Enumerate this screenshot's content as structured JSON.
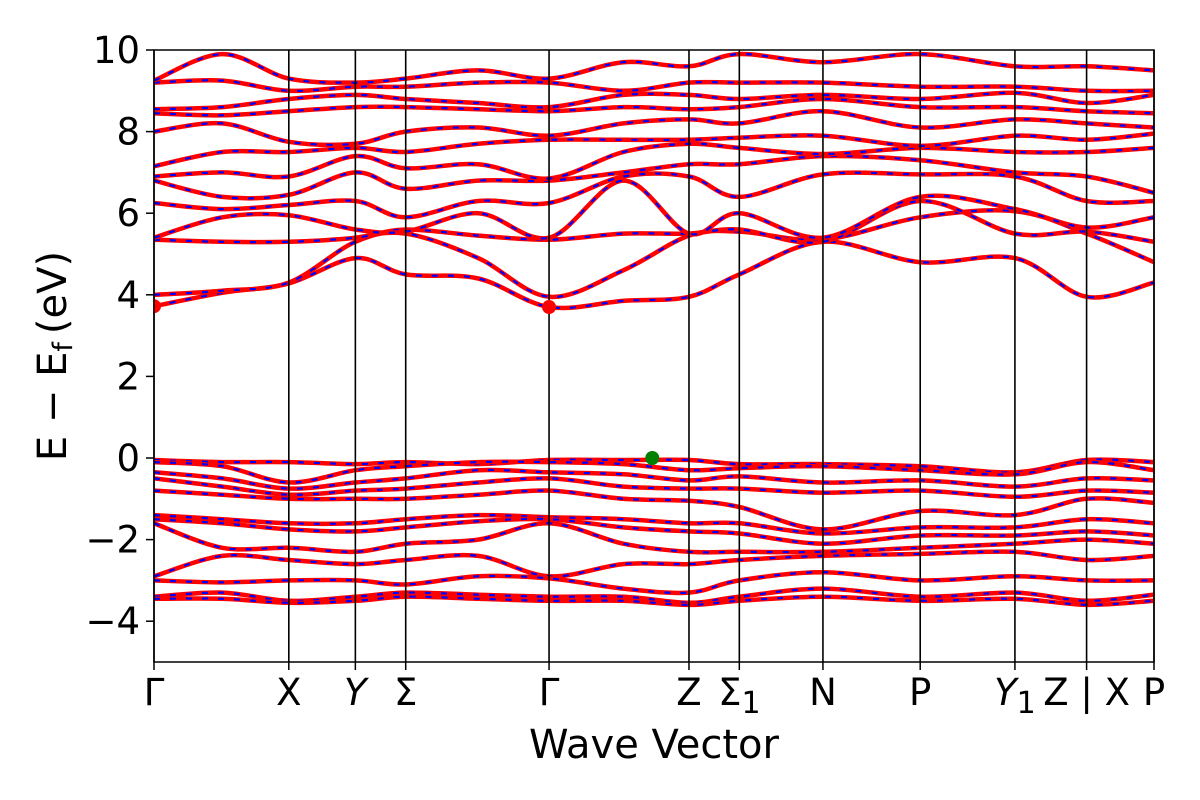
{
  "chart_data": {
    "type": "line",
    "xlabel": "Wave Vector",
    "ylabel": "E − E",
    "ylabel_sub": "f",
    "ylabel_unit": "(eV)",
    "ylim": [
      -5,
      10
    ],
    "y_ticks": [
      {
        "value": -4,
        "label": "−4"
      },
      {
        "value": -2,
        "label": "−2"
      },
      {
        "value": 0,
        "label": "0"
      },
      {
        "value": 2,
        "label": "2"
      },
      {
        "value": 4,
        "label": "4"
      },
      {
        "value": 6,
        "label": "6"
      },
      {
        "value": 8,
        "label": "8"
      },
      {
        "value": 10,
        "label": "10"
      }
    ],
    "x_range": [
      0,
      11.72
    ],
    "k_points": [
      {
        "label": "Γ",
        "x": 0
      },
      {
        "label": "X",
        "x": 1.58
      },
      {
        "label": "Y",
        "x": 2.36
      },
      {
        "label": "Σ",
        "x": 2.95
      },
      {
        "label": "Γ",
        "x": 4.63
      },
      {
        "label": "Z",
        "x": 6.27
      },
      {
        "label": "Σ",
        "sub": "1",
        "x": 6.86
      },
      {
        "label": "N",
        "x": 7.84
      },
      {
        "label": "P",
        "x": 8.98
      },
      {
        "label": "Y",
        "sub": "1",
        "x": 10.09
      },
      {
        "label": "Z | X",
        "x": 10.93
      },
      {
        "label": "P",
        "x": 11.72
      }
    ],
    "band_colors": {
      "line": "#ff0000",
      "dash": "#0000ff"
    },
    "markers": [
      {
        "name": "cbm",
        "x": 0,
        "y": 3.72,
        "color": "#ff0000"
      },
      {
        "name": "cbm",
        "x": 4.63,
        "y": 3.7,
        "color": "#ff0000"
      },
      {
        "name": "vbm",
        "x": 5.84,
        "y": 0.0,
        "color": "#008000"
      }
    ],
    "series": [
      {
        "x": [
          0,
          0.8,
          1.58,
          2.36,
          2.95,
          3.8,
          4.63,
          5.5,
          6.27,
          6.86,
          7.84,
          8.98,
          10.09,
          10.93,
          11.72
        ],
        "y": [
          3.72,
          4.05,
          4.28,
          4.9,
          4.5,
          4.4,
          3.7,
          3.85,
          3.95,
          4.5,
          5.3,
          4.8,
          4.9,
          3.95,
          4.3
        ]
      },
      {
        "x": [
          0,
          0.8,
          1.58,
          2.36,
          2.95,
          3.8,
          4.63,
          5.5,
          6.27,
          6.86,
          7.84,
          8.98,
          10.09,
          10.93,
          11.72
        ],
        "y": [
          4.0,
          4.1,
          4.3,
          5.3,
          5.5,
          4.9,
          3.95,
          4.6,
          5.45,
          5.55,
          5.35,
          5.9,
          6.05,
          5.5,
          4.8
        ]
      },
      {
        "x": [
          0,
          0.8,
          1.58,
          2.36,
          2.95,
          3.8,
          4.63,
          5.5,
          6.27,
          6.86,
          7.84,
          8.98,
          10.09,
          10.93,
          11.72
        ],
        "y": [
          5.35,
          5.3,
          5.3,
          5.4,
          5.6,
          5.45,
          5.35,
          5.5,
          5.5,
          5.6,
          5.3,
          6.3,
          5.5,
          5.55,
          5.3
        ]
      },
      {
        "x": [
          0,
          0.8,
          1.58,
          2.36,
          2.95,
          3.8,
          4.63,
          5.5,
          6.27,
          6.86,
          7.84,
          8.98,
          10.09,
          10.93,
          11.72
        ],
        "y": [
          5.4,
          5.9,
          5.95,
          5.6,
          5.55,
          6.0,
          5.4,
          6.8,
          5.5,
          6.0,
          5.4,
          6.4,
          6.1,
          5.65,
          5.9
        ]
      },
      {
        "x": [
          0,
          0.8,
          1.58,
          2.36,
          2.95,
          3.8,
          4.63,
          5.5,
          6.27,
          6.86,
          7.84,
          8.98,
          10.09,
          10.93,
          11.72
        ],
        "y": [
          6.25,
          6.1,
          6.2,
          6.3,
          5.9,
          6.3,
          6.25,
          6.9,
          6.9,
          6.4,
          6.95,
          6.95,
          6.9,
          6.3,
          6.3
        ]
      },
      {
        "x": [
          0,
          0.8,
          1.58,
          2.36,
          2.95,
          3.8,
          4.63,
          5.5,
          6.27,
          6.86,
          7.84,
          8.98,
          10.09,
          10.93,
          11.72
        ],
        "y": [
          6.8,
          6.4,
          6.45,
          7.0,
          6.6,
          6.8,
          6.8,
          7.0,
          7.2,
          7.2,
          7.4,
          7.3,
          7.0,
          6.9,
          6.5
        ]
      },
      {
        "x": [
          0,
          0.8,
          1.58,
          2.36,
          2.95,
          3.8,
          4.63,
          5.5,
          6.27,
          6.86,
          7.84,
          8.98,
          10.09,
          10.93,
          11.72
        ],
        "y": [
          6.9,
          7.0,
          6.9,
          7.4,
          7.1,
          7.2,
          6.85,
          7.5,
          7.7,
          7.6,
          7.45,
          7.6,
          7.5,
          7.5,
          7.6
        ]
      },
      {
        "x": [
          0,
          0.8,
          1.58,
          2.36,
          2.95,
          3.8,
          4.63,
          5.5,
          6.27,
          6.86,
          7.84,
          8.98,
          10.09,
          10.93,
          11.72
        ],
        "y": [
          7.15,
          7.5,
          7.5,
          7.6,
          7.5,
          7.7,
          7.8,
          7.8,
          7.8,
          7.85,
          7.9,
          7.65,
          7.9,
          7.8,
          7.95
        ]
      },
      {
        "x": [
          0,
          0.8,
          1.58,
          2.36,
          2.95,
          3.8,
          4.63,
          5.5,
          6.27,
          6.86,
          7.84,
          8.98,
          10.09,
          10.93,
          11.72
        ],
        "y": [
          8.0,
          8.2,
          7.75,
          7.7,
          8.0,
          8.1,
          7.9,
          8.2,
          8.3,
          8.2,
          8.5,
          8.1,
          8.3,
          8.2,
          8.1
        ]
      },
      {
        "x": [
          0,
          0.8,
          1.58,
          2.36,
          2.95,
          3.8,
          4.63,
          5.5,
          6.27,
          6.86,
          7.84,
          8.98,
          10.09,
          10.93,
          11.72
        ],
        "y": [
          8.45,
          8.4,
          8.5,
          8.6,
          8.6,
          8.55,
          8.5,
          8.6,
          8.55,
          8.6,
          8.8,
          8.6,
          8.6,
          8.5,
          8.45
        ]
      },
      {
        "x": [
          0,
          0.8,
          1.58,
          2.36,
          2.95,
          3.8,
          4.63,
          5.5,
          6.27,
          6.86,
          7.84,
          8.98,
          10.09,
          10.93,
          11.72
        ],
        "y": [
          8.55,
          8.6,
          8.8,
          8.9,
          8.8,
          8.7,
          8.6,
          8.9,
          8.9,
          8.8,
          8.9,
          8.8,
          8.95,
          8.7,
          8.9
        ]
      },
      {
        "x": [
          0,
          0.8,
          1.58,
          2.36,
          2.95,
          3.8,
          4.63,
          5.5,
          6.27,
          6.86,
          7.84,
          8.98,
          10.09,
          10.93,
          11.72
        ],
        "y": [
          9.2,
          9.25,
          9.0,
          9.1,
          9.1,
          9.2,
          9.2,
          9.0,
          9.2,
          9.2,
          9.2,
          9.1,
          9.1,
          9.0,
          9.0
        ]
      },
      {
        "x": [
          0,
          0.8,
          1.58,
          2.36,
          2.95,
          3.8,
          4.63,
          5.5,
          6.27,
          6.86,
          7.84,
          8.98,
          10.09,
          10.93,
          11.72
        ],
        "y": [
          9.25,
          9.9,
          9.3,
          9.2,
          9.3,
          9.5,
          9.3,
          9.7,
          9.6,
          9.9,
          9.7,
          9.9,
          9.6,
          9.6,
          9.5
        ]
      },
      {
        "x": [
          0,
          0.8,
          1.58,
          2.36,
          2.95,
          3.8,
          4.63,
          5.5,
          6.27,
          6.86,
          7.84,
          8.98,
          10.09,
          10.93,
          11.72
        ],
        "y": [
          -0.05,
          -0.1,
          -0.1,
          -0.15,
          -0.1,
          -0.15,
          -0.05,
          -0.05,
          -0.05,
          -0.15,
          -0.15,
          -0.2,
          -0.35,
          -0.05,
          -0.1
        ]
      },
      {
        "x": [
          0,
          0.8,
          1.58,
          2.36,
          2.95,
          3.8,
          4.63,
          5.5,
          6.27,
          6.86,
          7.84,
          8.98,
          10.09,
          10.93,
          11.72
        ],
        "y": [
          -0.1,
          -0.2,
          -0.6,
          -0.3,
          -0.2,
          -0.1,
          -0.1,
          -0.15,
          -0.3,
          -0.25,
          -0.2,
          -0.3,
          -0.4,
          -0.1,
          -0.3
        ]
      },
      {
        "x": [
          0,
          0.8,
          1.58,
          2.36,
          2.95,
          3.8,
          4.63,
          5.5,
          6.27,
          6.86,
          7.84,
          8.98,
          10.09,
          10.93,
          11.72
        ],
        "y": [
          -0.35,
          -0.5,
          -0.75,
          -0.6,
          -0.5,
          -0.3,
          -0.35,
          -0.4,
          -0.55,
          -0.45,
          -0.6,
          -0.55,
          -0.7,
          -0.5,
          -0.55
        ]
      },
      {
        "x": [
          0,
          0.8,
          1.58,
          2.36,
          2.95,
          3.8,
          4.63,
          5.5,
          6.27,
          6.86,
          7.84,
          8.98,
          10.09,
          10.93,
          11.72
        ],
        "y": [
          -0.5,
          -0.7,
          -0.9,
          -0.8,
          -0.75,
          -0.6,
          -0.5,
          -0.7,
          -0.75,
          -0.75,
          -0.85,
          -0.8,
          -0.95,
          -0.8,
          -0.85
        ]
      },
      {
        "x": [
          0,
          0.8,
          1.58,
          2.36,
          2.95,
          3.8,
          4.63,
          5.5,
          6.27,
          6.86,
          7.84,
          8.98,
          10.09,
          10.93,
          11.72
        ],
        "y": [
          -0.8,
          -0.9,
          -1.0,
          -1.0,
          -1.0,
          -0.9,
          -0.8,
          -1.0,
          -1.05,
          -1.2,
          -1.75,
          -1.3,
          -1.4,
          -1.0,
          -1.1
        ]
      },
      {
        "x": [
          0,
          0.8,
          1.58,
          2.36,
          2.95,
          3.8,
          4.63,
          5.5,
          6.27,
          6.86,
          7.84,
          8.98,
          10.09,
          10.93,
          11.72
        ],
        "y": [
          -1.4,
          -1.5,
          -1.6,
          -1.6,
          -1.5,
          -1.4,
          -1.45,
          -1.5,
          -1.6,
          -1.6,
          -1.85,
          -1.7,
          -1.7,
          -1.5,
          -1.6
        ]
      },
      {
        "x": [
          0,
          0.8,
          1.58,
          2.36,
          2.95,
          3.8,
          4.63,
          5.5,
          6.27,
          6.86,
          7.84,
          8.98,
          10.09,
          10.93,
          11.72
        ],
        "y": [
          -1.5,
          -1.6,
          -1.75,
          -1.8,
          -1.7,
          -1.55,
          -1.5,
          -1.7,
          -1.8,
          -1.85,
          -2.1,
          -1.9,
          -1.9,
          -1.8,
          -1.9
        ]
      },
      {
        "x": [
          0,
          0.8,
          1.58,
          2.36,
          2.95,
          3.8,
          4.63,
          5.5,
          6.27,
          6.86,
          7.84,
          8.98,
          10.09,
          10.93,
          11.72
        ],
        "y": [
          -1.6,
          -2.2,
          -2.2,
          -2.3,
          -2.1,
          -2.0,
          -1.6,
          -2.1,
          -2.3,
          -2.3,
          -2.3,
          -2.2,
          -2.1,
          -2.0,
          -2.1
        ]
      },
      {
        "x": [
          0,
          0.8,
          1.58,
          2.36,
          2.95,
          3.8,
          4.63,
          5.5,
          6.27,
          6.86,
          7.84,
          8.98,
          10.09,
          10.93,
          11.72
        ],
        "y": [
          -2.9,
          -2.4,
          -2.5,
          -2.6,
          -2.5,
          -2.4,
          -2.9,
          -2.6,
          -2.6,
          -2.5,
          -2.4,
          -2.35,
          -2.3,
          -2.5,
          -2.4
        ]
      },
      {
        "x": [
          0,
          0.8,
          1.58,
          2.36,
          2.95,
          3.8,
          4.63,
          5.5,
          6.27,
          6.86,
          7.84,
          8.98,
          10.09,
          10.93,
          11.72
        ],
        "y": [
          -3.0,
          -3.05,
          -3.0,
          -3.0,
          -3.1,
          -2.9,
          -2.95,
          -3.2,
          -3.3,
          -3.0,
          -2.8,
          -3.0,
          -2.9,
          -3.0,
          -3.0
        ]
      },
      {
        "x": [
          0,
          0.8,
          1.58,
          2.36,
          2.95,
          3.8,
          4.63,
          5.5,
          6.27,
          6.86,
          7.84,
          8.98,
          10.09,
          10.93,
          11.72
        ],
        "y": [
          -3.4,
          -3.3,
          -3.5,
          -3.4,
          -3.3,
          -3.35,
          -3.4,
          -3.4,
          -3.55,
          -3.4,
          -3.2,
          -3.4,
          -3.3,
          -3.5,
          -3.35
        ]
      },
      {
        "x": [
          0,
          0.8,
          1.58,
          2.36,
          2.95,
          3.8,
          4.63,
          5.5,
          6.27,
          6.86,
          7.84,
          8.98,
          10.09,
          10.93,
          11.72
        ],
        "y": [
          -3.45,
          -3.45,
          -3.55,
          -3.5,
          -3.4,
          -3.45,
          -3.5,
          -3.5,
          -3.6,
          -3.5,
          -3.4,
          -3.5,
          -3.45,
          -3.6,
          -3.5
        ]
      }
    ]
  }
}
